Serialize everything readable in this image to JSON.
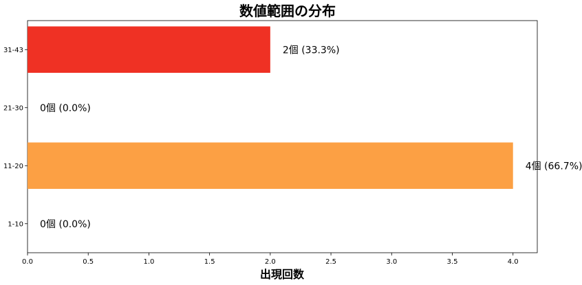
{
  "chart_data": {
    "type": "bar",
    "orientation": "horizontal",
    "title": "数値範囲の分布",
    "xlabel": "出現回数",
    "ylabel": "",
    "categories": [
      "1-10",
      "11-20",
      "21-30",
      "31-43"
    ],
    "values": [
      0,
      4,
      0,
      2
    ],
    "data_labels": [
      "0個 (0.0%)",
      "4個 (66.7%)",
      "0個 (0.0%)",
      "2個 (33.3%)"
    ],
    "bar_colors": [
      "#fca044",
      "#fca044",
      "#fca044",
      "#ef3124"
    ],
    "xlim": [
      0,
      4.2
    ],
    "x_ticks": [
      0.0,
      0.5,
      1.0,
      1.5,
      2.0,
      2.5,
      3.0,
      3.5,
      4.0
    ],
    "x_tick_labels": [
      "0.0",
      "0.5",
      "1.0",
      "1.5",
      "2.0",
      "2.5",
      "3.0",
      "3.5",
      "4.0"
    ],
    "grid": false,
    "legend": "none"
  }
}
